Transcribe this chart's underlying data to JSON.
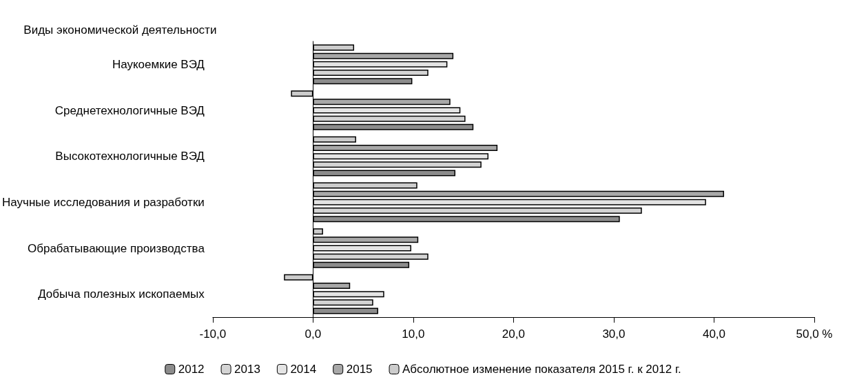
{
  "chart_data": {
    "type": "bar",
    "orientation": "horizontal",
    "ylabel": "Виды экономической деятельности",
    "categories": [
      "Наукоемкие ВЭД",
      "Среднетехнологичные ВЭД",
      "Высокотехнологичные ВЭД",
      "Научные исследования и разработки",
      "Обрабатывающие производства",
      "Добыча полезных ископаемых"
    ],
    "series": [
      {
        "name": "2012",
        "color": "#8c8c8c",
        "values": [
          9.9,
          16.0,
          14.2,
          30.6,
          9.6,
          6.5
        ]
      },
      {
        "name": "2013",
        "color": "#d4d4d4",
        "values": [
          11.5,
          15.2,
          16.8,
          32.8,
          11.5,
          6.0
        ]
      },
      {
        "name": "2014",
        "color": "#e4e4e4",
        "values": [
          13.4,
          14.7,
          17.5,
          39.2,
          9.8,
          7.1
        ]
      },
      {
        "name": "2015",
        "color": "#a8a8a8",
        "values": [
          14.0,
          13.7,
          18.4,
          41.0,
          10.5,
          3.7
        ]
      },
      {
        "name": "Абсолютное изменение показателя 2015 г. к 2012 г.",
        "color": "#cccccc",
        "values": [
          4.1,
          -2.2,
          4.3,
          10.4,
          1.0,
          -2.9
        ]
      }
    ],
    "xlim": [
      -10,
      50
    ],
    "xticks": [
      {
        "value": -10,
        "label": "-10,0"
      },
      {
        "value": 0,
        "label": "0,0"
      },
      {
        "value": 10,
        "label": "10,0"
      },
      {
        "value": 20,
        "label": "20,0"
      },
      {
        "value": 30,
        "label": "30,0"
      },
      {
        "value": 40,
        "label": "40,0"
      },
      {
        "value": 50,
        "label": "50,0 %"
      }
    ],
    "legend": "bottom"
  }
}
